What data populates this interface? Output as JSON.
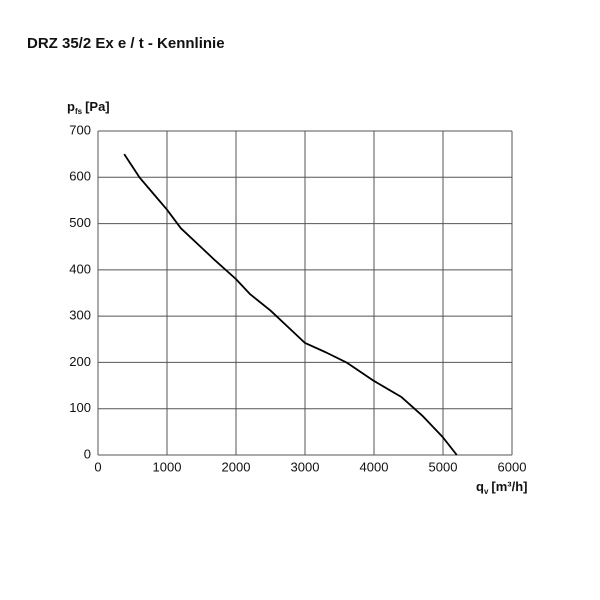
{
  "chart_data": {
    "type": "line",
    "title": "DRZ 35/2 Ex e / t - Kennlinie",
    "ylabel": {
      "symbol": "p",
      "subscript": "fs",
      "unit": "[Pa]"
    },
    "xlabel": {
      "symbol": "q",
      "subscript": "v",
      "unit": "[m³/h]"
    },
    "xlim": [
      0,
      6000
    ],
    "xticks": [
      0,
      1000,
      2000,
      3000,
      4000,
      5000,
      6000
    ],
    "ylim": [
      0,
      700
    ],
    "yticks": [
      0,
      100,
      200,
      300,
      400,
      500,
      600,
      700
    ],
    "grid": true,
    "series": [
      {
        "color": "#000000",
        "x": [
          380,
          600,
          800,
          1000,
          1200,
          1500,
          1700,
          2000,
          2200,
          2500,
          2800,
          3000,
          3300,
          3600,
          4000,
          4400,
          4700,
          5000,
          5200
        ],
        "values": [
          650,
          600,
          565,
          530,
          490,
          448,
          420,
          380,
          348,
          312,
          270,
          242,
          222,
          200,
          160,
          125,
          85,
          38,
          0
        ]
      }
    ]
  }
}
